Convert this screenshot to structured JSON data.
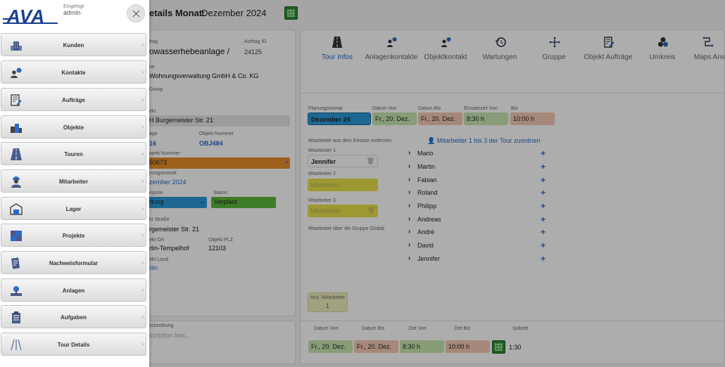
{
  "header": {
    "title_label": "etails Monat:",
    "title_value": "Dezember 2024"
  },
  "left_panel": {
    "auftrag_label": "trag",
    "auftrag_value": "owasserhebeanlage /",
    "auftrag_id_label": "Auftrag ID",
    "auftrag_id_value": "24125",
    "kunde_label": "ne",
    "kunde_value": "Wohnungsverwaltung GmbH & Co. KG",
    "group_label": "Group",
    "objekt_label": "ekt",
    "objekt_value": "H Burgemeister Str. 21",
    "anlage_label": "age",
    "anlage_value": "16",
    "objekt_nummer_label": "Objekt Nummer",
    "objekt_nummer_value": "OBJ484",
    "projekt_nummer_label": "ojekt Nummer",
    "projekt_nummer_value": "50673",
    "planungsmonat_label": "nungsmonat",
    "planungsmonat_value": "zember 2024",
    "kategorie_label": "egorie",
    "kategorie_value": "rtung",
    "status_label": "Status",
    "status_value": "Verplant",
    "strasse_label": "kt Straße",
    "strasse_value": "rgemeister Str. 21",
    "ort_label": "ekt Ort",
    "ort_value": "rlin-Tempelhof",
    "plz_label": "Objekt PLZ",
    "plz_value": "12103",
    "land_label": "ekt Land",
    "land_value": "rlin",
    "beschreibung_label": "schreibung",
    "beschreibung_placeholder": "scription text..."
  },
  "tabs": [
    {
      "label": "Tour Infos",
      "icon": "road-icon"
    },
    {
      "label": "Anlagenkontakte",
      "icon": "contact-icon"
    },
    {
      "label": "Objektkontakt",
      "icon": "contact-icon"
    },
    {
      "label": "Wartungen",
      "icon": "history-icon"
    },
    {
      "label": "Gruppe",
      "icon": "network-icon"
    },
    {
      "label": "Objekt Aufträge",
      "icon": "edit-doc-icon"
    },
    {
      "label": "Umkreis",
      "icon": "cluster-icon"
    },
    {
      "label": "Maps Ans",
      "icon": "route-icon"
    }
  ],
  "tour": {
    "planungsmonat_label": "Planungsmonat",
    "planungsmonat_value": "Dezember 24",
    "datum_von_label": "Datum Von",
    "datum_von_value": "Fr., 20. Dez.",
    "datum_bis_label": "Datum Bis",
    "datum_bis_value": "Fr., 20. Dez.",
    "einsatzzeit_label": "Einsatzzeit Von",
    "einsatzzeit_value": "8:30 h",
    "bis_label": "Bis",
    "bis_value": "10:00 h",
    "remove_label": "Mitarbeiter aus dem Einsatz entfernen",
    "assign_label": "Mitarbeiter 1 bis 3 der Tour zuordnen",
    "ma1_label": "Mitarbeiter 1",
    "ma1_value": "Jennifer",
    "ma2_label": "Mitarbeiter 2",
    "ma2_placeholder": "Mitarbeiter",
    "ma3_label": "Mitarbeiter 3",
    "ma3_placeholder": "Mitarbeiter",
    "global_label": "Mitarbeiter über die Gruppe Global",
    "employees": [
      "Mario",
      "Martin",
      "Fabian",
      "Roland",
      "Philipp",
      "Andreas",
      "André",
      "David",
      "Jennifer"
    ],
    "anz_label": "Anz. Mitarbeiter",
    "anz_value": "1",
    "bottom_headers": [
      "Datum Von",
      "Datum Bis",
      "Zeit Von",
      "Zeit Bis",
      "Sollzeit"
    ],
    "bottom_values": [
      "Fr., 20. Dez.",
      "Fr., 20. Dez.",
      "8:30 h",
      "10:00 h"
    ],
    "sollzeit_value": "1:30"
  },
  "menu": {
    "logo_text": "AVA",
    "login_label": "Eingelogt",
    "login_user": "admin",
    "items": [
      {
        "label": "Kunden",
        "icon": "building-icon"
      },
      {
        "label": "Kontakte",
        "icon": "contact-icon"
      },
      {
        "label": "Aufträge",
        "icon": "edit-doc-icon"
      },
      {
        "label": "Objekte",
        "icon": "objects-icon"
      },
      {
        "label": "Touren",
        "icon": "road-icon"
      },
      {
        "label": "Mitarbeiter",
        "icon": "worker-icon"
      },
      {
        "label": "Lager",
        "icon": "warehouse-icon"
      },
      {
        "label": "Projekte",
        "icon": "puzzle-icon"
      },
      {
        "label": "Nachweisformular",
        "icon": "form-icon"
      },
      {
        "label": "Anlagen",
        "icon": "plant-icon"
      },
      {
        "label": "Aufgaben",
        "icon": "clipboard-icon"
      },
      {
        "label": "Tour Details",
        "icon": "tour-details-icon"
      }
    ]
  },
  "colors": {
    "accent": "#2a6ac8",
    "green": "#5ab83a",
    "orange": "#e8902a",
    "yellow": "#e8e04a",
    "salmon": "#f3c9b3",
    "lightgreen": "#c8e6b0",
    "logo": "#1a3d8f"
  }
}
